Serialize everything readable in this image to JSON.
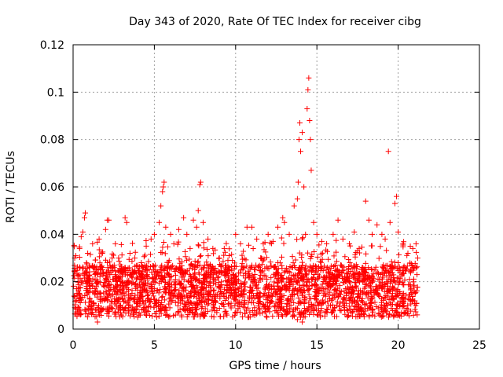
{
  "chart_data": {
    "type": "scatter",
    "title": "Day 343 of 2020, Rate Of TEC Index for receiver cibg",
    "xlabel": "GPS time / hours",
    "ylabel": "ROTI / TECUs",
    "xlim": [
      0,
      25
    ],
    "ylim": [
      0,
      0.12
    ],
    "x_ticks": [
      0,
      5,
      10,
      15,
      20,
      25
    ],
    "x_tick_labels": [
      "0",
      "5",
      "10",
      "15",
      "20",
      "25"
    ],
    "y_ticks": [
      0,
      0.02,
      0.04,
      0.06,
      0.08,
      0.1,
      0.12
    ],
    "y_tick_labels": [
      "0",
      "0.02",
      "0.04",
      "0.06",
      "0.08",
      "0.1",
      "0.12"
    ],
    "grid": true,
    "marker": "+",
    "colors": {
      "points": "#ff0000",
      "grid": "#a0a0a0",
      "axes": "#000000"
    },
    "series": [
      {
        "points": [
          [
            0.1,
            0.03
          ],
          [
            0.2,
            0.012
          ],
          [
            0.3,
            0.02
          ],
          [
            0.4,
            0.034
          ],
          [
            0.5,
            0.039
          ],
          [
            0.6,
            0.041
          ],
          [
            0.7,
            0.047
          ],
          [
            0.75,
            0.049
          ],
          [
            0.9,
            0.032
          ],
          [
            1.0,
            0.018
          ],
          [
            1.2,
            0.036
          ],
          [
            1.4,
            0.025
          ],
          [
            1.6,
            0.038
          ],
          [
            1.8,
            0.032
          ],
          [
            2.0,
            0.042
          ],
          [
            2.1,
            0.046
          ],
          [
            2.2,
            0.046
          ],
          [
            2.4,
            0.03
          ],
          [
            2.6,
            0.036
          ],
          [
            2.8,
            0.03
          ],
          [
            3.0,
            0.025
          ],
          [
            3.2,
            0.047
          ],
          [
            3.3,
            0.045
          ],
          [
            3.5,
            0.032
          ],
          [
            3.8,
            0.03
          ],
          [
            4.0,
            0.022
          ],
          [
            4.2,
            0.028
          ],
          [
            4.5,
            0.035
          ],
          [
            4.8,
            0.038
          ],
          [
            5.0,
            0.04
          ],
          [
            5.3,
            0.045
          ],
          [
            5.4,
            0.052
          ],
          [
            5.5,
            0.058
          ],
          [
            5.55,
            0.06
          ],
          [
            5.6,
            0.062
          ],
          [
            5.7,
            0.043
          ],
          [
            6.0,
            0.04
          ],
          [
            6.2,
            0.036
          ],
          [
            6.5,
            0.042
          ],
          [
            6.8,
            0.047
          ],
          [
            7.0,
            0.04
          ],
          [
            7.2,
            0.034
          ],
          [
            7.4,
            0.046
          ],
          [
            7.6,
            0.043
          ],
          [
            7.7,
            0.05
          ],
          [
            7.8,
            0.061
          ],
          [
            7.85,
            0.062
          ],
          [
            8.0,
            0.045
          ],
          [
            8.3,
            0.038
          ],
          [
            8.6,
            0.034
          ],
          [
            9.0,
            0.03
          ],
          [
            9.3,
            0.034
          ],
          [
            9.6,
            0.031
          ],
          [
            10.0,
            0.04
          ],
          [
            10.3,
            0.036
          ],
          [
            10.7,
            0.043
          ],
          [
            11.0,
            0.043
          ],
          [
            11.3,
            0.038
          ],
          [
            11.7,
            0.036
          ],
          [
            12.0,
            0.04
          ],
          [
            12.3,
            0.037
          ],
          [
            12.6,
            0.043
          ],
          [
            12.9,
            0.047
          ],
          [
            13.0,
            0.045
          ],
          [
            13.3,
            0.04
          ],
          [
            13.6,
            0.052
          ],
          [
            13.8,
            0.055
          ],
          [
            13.85,
            0.062
          ],
          [
            13.9,
            0.08
          ],
          [
            13.95,
            0.087
          ],
          [
            14.0,
            0.075
          ],
          [
            14.1,
            0.083
          ],
          [
            14.2,
            0.06
          ],
          [
            14.3,
            0.04
          ],
          [
            14.4,
            0.093
          ],
          [
            14.45,
            0.101
          ],
          [
            14.5,
            0.106
          ],
          [
            14.55,
            0.088
          ],
          [
            14.6,
            0.08
          ],
          [
            14.65,
            0.067
          ],
          [
            14.8,
            0.045
          ],
          [
            15.0,
            0.04
          ],
          [
            15.3,
            0.037
          ],
          [
            15.6,
            0.036
          ],
          [
            16.0,
            0.04
          ],
          [
            16.3,
            0.046
          ],
          [
            16.6,
            0.038
          ],
          [
            17.0,
            0.036
          ],
          [
            17.3,
            0.041
          ],
          [
            17.6,
            0.034
          ],
          [
            18.0,
            0.054
          ],
          [
            18.2,
            0.046
          ],
          [
            18.4,
            0.04
          ],
          [
            18.7,
            0.044
          ],
          [
            19.0,
            0.04
          ],
          [
            19.2,
            0.038
          ],
          [
            19.4,
            0.075
          ],
          [
            19.5,
            0.045
          ],
          [
            19.8,
            0.053
          ],
          [
            19.9,
            0.056
          ],
          [
            20.0,
            0.041
          ],
          [
            20.3,
            0.036
          ],
          [
            20.6,
            0.032
          ],
          [
            20.9,
            0.034
          ],
          [
            21.1,
            0.036
          ],
          [
            21.2,
            0.03
          ],
          [
            13.8,
            0.004
          ],
          [
            14.0,
            0.005
          ],
          [
            14.1,
            0.003
          ],
          [
            1.5,
            0.003
          ]
        ]
      }
    ]
  }
}
